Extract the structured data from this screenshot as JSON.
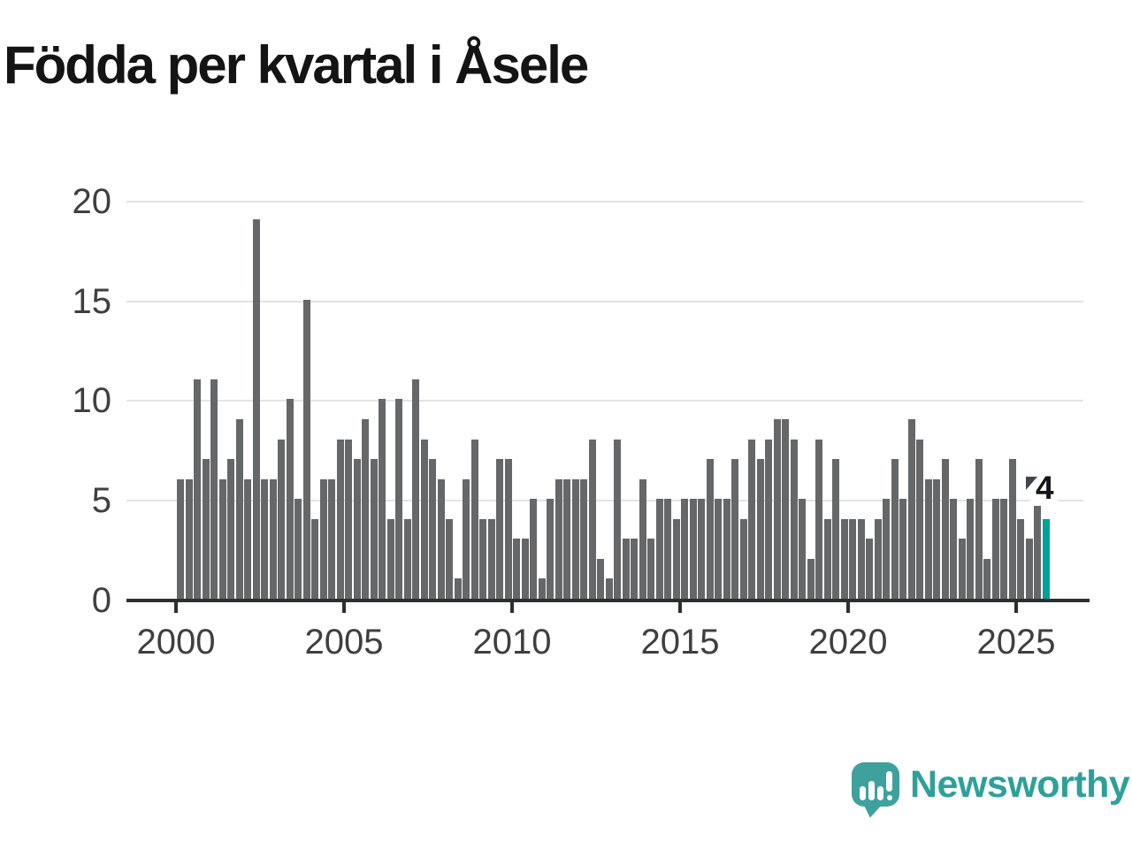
{
  "title": "Födda per kvartal i Åsele",
  "annotation": {
    "latest_value_label": "4"
  },
  "logo": {
    "brand": "Newsworthy"
  },
  "colors": {
    "bar": "#666769",
    "highlight": "#00a19b",
    "title_text": "#141414",
    "axis_text": "#3f3f3f",
    "gridline": "#e3e3e3",
    "axis_line": "#2e2e2e",
    "flag": "#41454b",
    "logo_teal": "#3fa19d",
    "logo_text_color": "#2ea099"
  },
  "y_axis": {
    "ticks": [
      5,
      10,
      15,
      20
    ],
    "zero_label": "0",
    "labels": [
      "5",
      "10",
      "15",
      "20"
    ]
  },
  "x_axis": {
    "labels": [
      "2000",
      "2005",
      "2010",
      "2015",
      "2020",
      "2025"
    ]
  },
  "chart_data": {
    "type": "bar",
    "title": "Födda per kvartal i Åsele",
    "x_unit": "quarter",
    "x_start_year": 2000,
    "x_start": "2000 Q1",
    "x_end": "2025 Q4",
    "xlabel": "",
    "ylabel": "",
    "ylim": [
      0,
      20
    ],
    "y_ticks": [
      0,
      5,
      10,
      15,
      20
    ],
    "grid": true,
    "legend": false,
    "values": [
      6,
      6,
      11,
      7,
      11,
      6,
      7,
      9,
      6,
      19,
      6,
      6,
      8,
      10,
      5,
      15,
      4,
      6,
      6,
      8,
      8,
      7,
      9,
      7,
      10,
      4,
      10,
      4,
      11,
      8,
      7,
      6,
      4,
      1,
      6,
      8,
      4,
      4,
      7,
      7,
      3,
      3,
      5,
      1,
      5,
      6,
      6,
      6,
      6,
      8,
      2,
      1,
      8,
      3,
      3,
      6,
      3,
      5,
      5,
      4,
      5,
      5,
      5,
      7,
      5,
      5,
      7,
      4,
      8,
      7,
      8,
      9,
      9,
      8,
      5,
      2,
      8,
      4,
      7,
      4,
      4,
      4,
      3,
      4,
      5,
      7,
      5,
      9,
      8,
      6,
      6,
      7,
      5,
      3,
      5,
      7,
      2,
      5,
      5,
      7,
      4,
      3,
      5,
      4
    ],
    "highlight_last": {
      "quarter": "2025 Q4",
      "value": 4,
      "label": "4",
      "color": "#00a19b"
    }
  }
}
